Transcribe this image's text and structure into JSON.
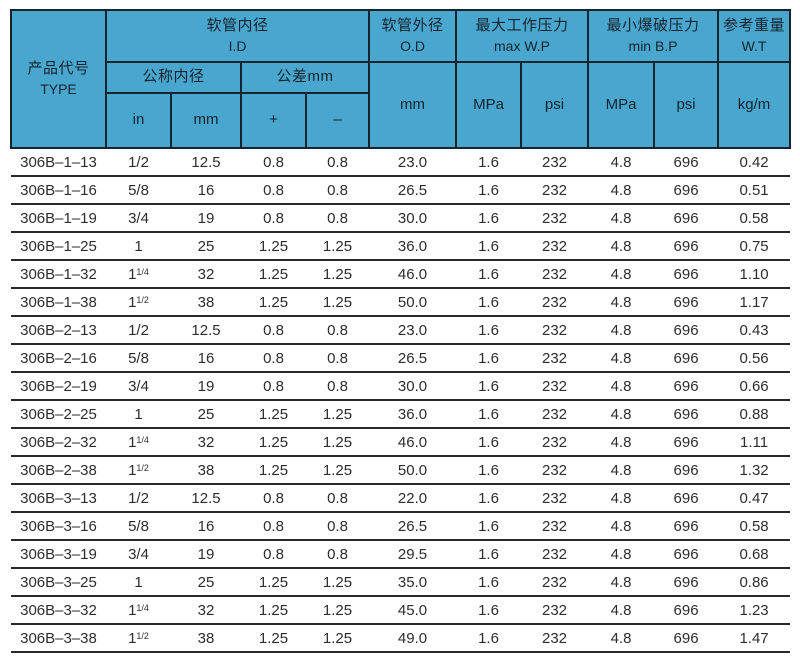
{
  "colors": {
    "header_bg": "#49a6ce",
    "header_border": "#16242e",
    "header_text": "#16242e",
    "row_line": "#282828",
    "body_text": "#2d2d2d"
  },
  "header": {
    "type": {
      "zh": "产品代号",
      "en": "TYPE"
    },
    "id": {
      "zh": "软管内径",
      "en": "I.D"
    },
    "nominal": {
      "zh": "公称内径"
    },
    "tolerance": {
      "zh": "公差mm"
    },
    "sub": {
      "in": "in",
      "mm": "mm",
      "plus": "+",
      "minus": "–"
    },
    "od": {
      "zh": "软管外径",
      "en": "O.D",
      "unit": "mm"
    },
    "wp": {
      "zh": "最大工作压力",
      "en": "max W.P",
      "mpa": "MPa",
      "psi": "psi"
    },
    "bp": {
      "zh": "最小爆破压力",
      "en": "min B.P",
      "mpa": "MPa",
      "psi": "psi"
    },
    "wt": {
      "zh": "参考重量",
      "en": "W.T",
      "unit": "kg/m"
    }
  },
  "table": {
    "columns": [
      "type",
      "in",
      "mm",
      "plus",
      "minus",
      "od",
      "wp_mpa",
      "wp_psi",
      "bp_mpa",
      "bp_psi",
      "wt"
    ],
    "rows": [
      [
        "306B–1–13",
        "1/2",
        "12.5",
        "0.8",
        "0.8",
        "23.0",
        "1.6",
        "232",
        "4.8",
        "696",
        "0.42"
      ],
      [
        "306B–1–16",
        "5/8",
        "16",
        "0.8",
        "0.8",
        "26.5",
        "1.6",
        "232",
        "4.8",
        "696",
        "0.51"
      ],
      [
        "306B–1–19",
        "3/4",
        "19",
        "0.8",
        "0.8",
        "30.0",
        "1.6",
        "232",
        "4.8",
        "696",
        "0.58"
      ],
      [
        "306B–1–25",
        "1",
        "25",
        "1.25",
        "1.25",
        "36.0",
        "1.6",
        "232",
        "4.8",
        "696",
        "0.75"
      ],
      [
        "306B–1–32",
        "1 1/4",
        "32",
        "1.25",
        "1.25",
        "46.0",
        "1.6",
        "232",
        "4.8",
        "696",
        "1.10"
      ],
      [
        "306B–1–38",
        "1 1/2",
        "38",
        "1.25",
        "1.25",
        "50.0",
        "1.6",
        "232",
        "4.8",
        "696",
        "1.17"
      ],
      [
        "306B–2–13",
        "1/2",
        "12.5",
        "0.8",
        "0.8",
        "23.0",
        "1.6",
        "232",
        "4.8",
        "696",
        "0.43"
      ],
      [
        "306B–2–16",
        "5/8",
        "16",
        "0.8",
        "0.8",
        "26.5",
        "1.6",
        "232",
        "4.8",
        "696",
        "0.56"
      ],
      [
        "306B–2–19",
        "3/4",
        "19",
        "0.8",
        "0.8",
        "30.0",
        "1.6",
        "232",
        "4.8",
        "696",
        "0.66"
      ],
      [
        "306B–2–25",
        "1",
        "25",
        "1.25",
        "1.25",
        "36.0",
        "1.6",
        "232",
        "4.8",
        "696",
        "0.88"
      ],
      [
        "306B–2–32",
        "1 1/4",
        "32",
        "1.25",
        "1.25",
        "46.0",
        "1.6",
        "232",
        "4.8",
        "696",
        "1.11"
      ],
      [
        "306B–2–38",
        "1 1/2",
        "38",
        "1.25",
        "1.25",
        "50.0",
        "1.6",
        "232",
        "4.8",
        "696",
        "1.32"
      ],
      [
        "306B–3–13",
        "1/2",
        "12.5",
        "0.8",
        "0.8",
        "22.0",
        "1.6",
        "232",
        "4.8",
        "696",
        "0.47"
      ],
      [
        "306B–3–16",
        "5/8",
        "16",
        "0.8",
        "0.8",
        "26.5",
        "1.6",
        "232",
        "4.8",
        "696",
        "0.58"
      ],
      [
        "306B–3–19",
        "3/4",
        "19",
        "0.8",
        "0.8",
        "29.5",
        "1.6",
        "232",
        "4.8",
        "696",
        "0.68"
      ],
      [
        "306B–3–25",
        "1",
        "25",
        "1.25",
        "1.25",
        "35.0",
        "1.6",
        "232",
        "4.8",
        "696",
        "0.86"
      ],
      [
        "306B–3–32",
        "1 1/4",
        "32",
        "1.25",
        "1.25",
        "45.0",
        "1.6",
        "232",
        "4.8",
        "696",
        "1.23"
      ],
      [
        "306B–3–38",
        "1 1/2",
        "38",
        "1.25",
        "1.25",
        "49.0",
        "1.6",
        "232",
        "4.8",
        "696",
        "1.47"
      ]
    ]
  }
}
